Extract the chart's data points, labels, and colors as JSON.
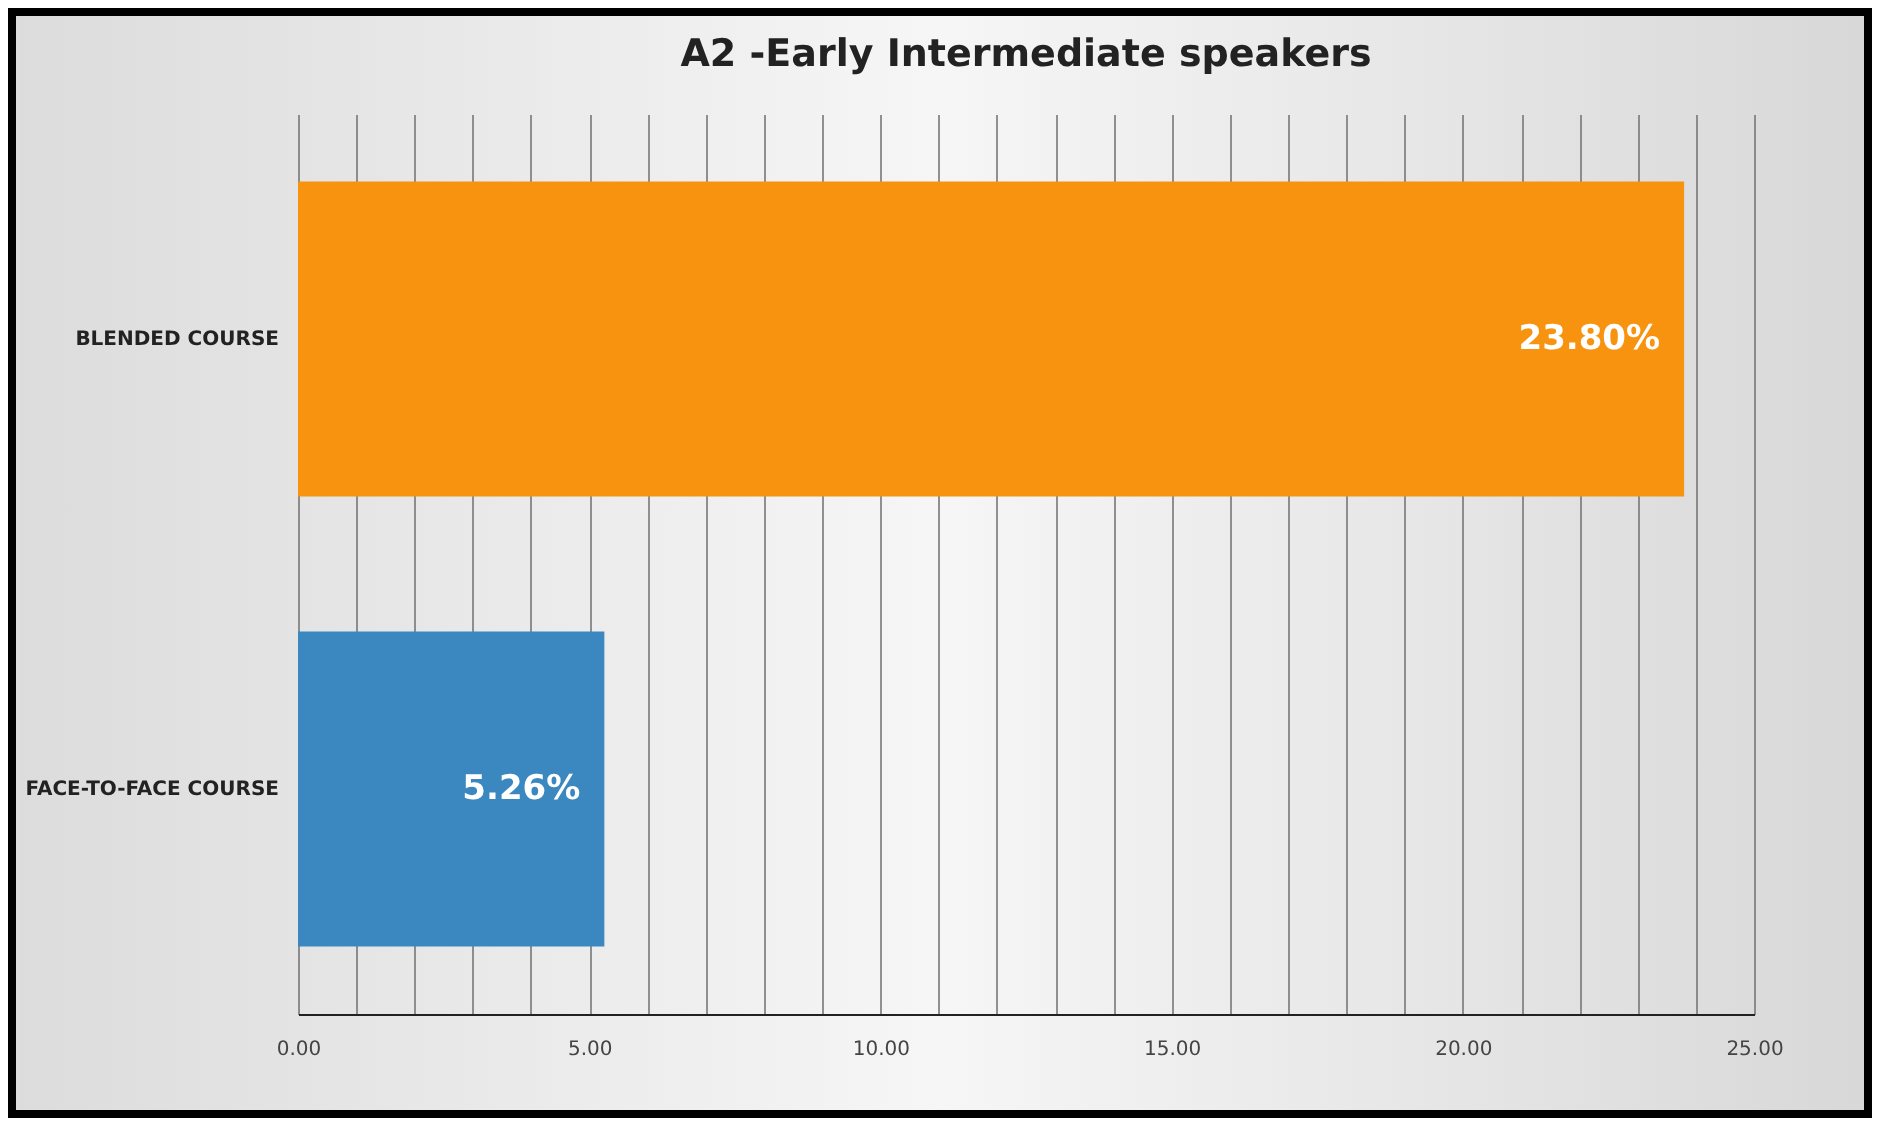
{
  "chart_data": {
    "type": "bar",
    "orientation": "horizontal",
    "title": "A2 -Early Intermediate speakers",
    "categories": [
      "BLENDED COURSE",
      "FACE-TO-FACE COURSE"
    ],
    "values": [
      23.8,
      5.26
    ],
    "colors": [
      "#f7930f",
      "#3a88bf"
    ],
    "value_labels": [
      "23.80%",
      "5.26%"
    ],
    "xlim": [
      0,
      25
    ],
    "xticks": [
      {
        "value": 0,
        "label": "0.00"
      },
      {
        "value": 1,
        "label": null
      },
      {
        "value": 2,
        "label": null
      },
      {
        "value": 3,
        "label": null
      },
      {
        "value": 4,
        "label": null
      },
      {
        "value": 5,
        "label": "5.00"
      },
      {
        "value": 6,
        "label": null
      },
      {
        "value": 7,
        "label": null
      },
      {
        "value": 8,
        "label": null
      },
      {
        "value": 9,
        "label": null
      },
      {
        "value": 10,
        "label": "10.00"
      },
      {
        "value": 11,
        "label": null
      },
      {
        "value": 12,
        "label": null
      },
      {
        "value": 13,
        "label": null
      },
      {
        "value": 14,
        "label": null
      },
      {
        "value": 15,
        "label": "15.00"
      },
      {
        "value": 16,
        "label": null
      },
      {
        "value": 17,
        "label": null
      },
      {
        "value": 18,
        "label": null
      },
      {
        "value": 19,
        "label": null
      },
      {
        "value": 20,
        "label": "20.00"
      },
      {
        "value": 21,
        "label": null
      },
      {
        "value": 22,
        "label": null
      },
      {
        "value": 23,
        "label": null
      },
      {
        "value": 24,
        "label": null
      },
      {
        "value": 25,
        "label": "25.00"
      }
    ],
    "grid": "x"
  }
}
